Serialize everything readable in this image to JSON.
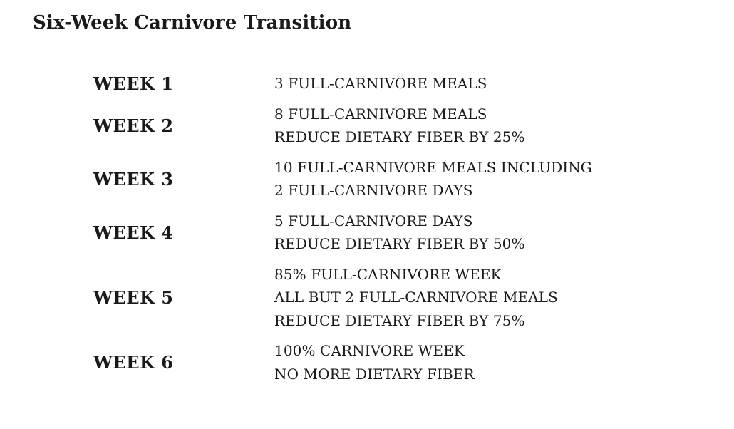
{
  "title": "Six-Week Carnivore Transition",
  "weeks": [
    {
      "label": "WEEK 1",
      "items": [
        "3 FULL-CARNIVORE MEALS"
      ]
    },
    {
      "label": "WEEK 2",
      "items": [
        "8 FULL-CARNIVORE MEALS",
        "REDUCE DIETARY FIBER BY 25%"
      ]
    },
    {
      "label": "WEEK 3",
      "items": [
        "10 FULL-CARNIVORE MEALS INCLUDING",
        "2 FULL-CARNIVORE DAYS"
      ]
    },
    {
      "label": "WEEK 4",
      "items": [
        "5 FULL-CARNIVORE DAYS",
        "REDUCE DIETARY FIBER BY 50%"
      ]
    },
    {
      "label": "WEEK 5",
      "items": [
        "85% FULL-CARNIVORE WEEK",
        "ALL BUT 2 FULL-CARNIVORE MEALS",
        "REDUCE DIETARY FIBER BY 75%"
      ]
    },
    {
      "label": "WEEK 6",
      "items": [
        "100% CARNIVORE WEEK",
        "NO MORE DIETARY FIBER"
      ]
    }
  ]
}
